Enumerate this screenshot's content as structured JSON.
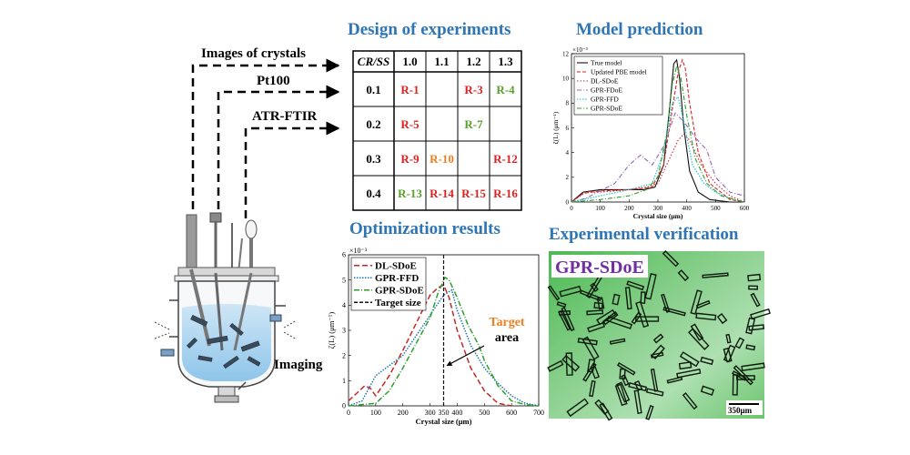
{
  "labels": {
    "images_of_crystals": "Images of crystals",
    "pt100": "Pt100",
    "atr_ftir": "ATR-FTIR",
    "imaging": "Imaging"
  },
  "headings": {
    "design": "Design of experiments",
    "model": "Model prediction",
    "optimization": "Optimization results",
    "verification": "Experimental verification"
  },
  "doe_table": {
    "corner": "CR/SS",
    "columns": [
      "1.0",
      "1.1",
      "1.2",
      "1.3"
    ],
    "rows": [
      {
        "header": "0.1",
        "cells": [
          {
            "text": "R-1",
            "color": "#e02020"
          },
          {
            "text": "",
            "color": "#000"
          },
          {
            "text": "R-3",
            "color": "#e02020"
          },
          {
            "text": "R-4",
            "color": "#5aa02c"
          }
        ]
      },
      {
        "header": "0.2",
        "cells": [
          {
            "text": "R-5",
            "color": "#e02020"
          },
          {
            "text": "",
            "color": "#000"
          },
          {
            "text": "R-7",
            "color": "#5aa02c"
          },
          {
            "text": "",
            "color": "#000"
          }
        ]
      },
      {
        "header": "0.3",
        "cells": [
          {
            "text": "R-9",
            "color": "#e02020"
          },
          {
            "text": "R-10",
            "color": "#f07f20"
          },
          {
            "text": "",
            "color": "#000"
          },
          {
            "text": "R-12",
            "color": "#e02020"
          }
        ]
      },
      {
        "header": "0.4",
        "cells": [
          {
            "text": "R-13",
            "color": "#5aa02c"
          },
          {
            "text": "R-14",
            "color": "#e02020"
          },
          {
            "text": "R-15",
            "color": "#e02020"
          },
          {
            "text": "R-16",
            "color": "#e02020"
          }
        ]
      }
    ]
  },
  "chart_data": [
    {
      "type": "line",
      "title": "Model prediction",
      "xlabel": "Crystal size (μm)",
      "ylabel": "ζ(L) (μm⁻¹)",
      "y_multiplier": "×10⁻³",
      "xlim": [
        0,
        600
      ],
      "ylim": [
        0,
        12
      ],
      "xticks": [
        0,
        100,
        200,
        300,
        400,
        500,
        600
      ],
      "yticks": [
        0,
        2,
        4,
        6,
        8,
        10,
        12
      ],
      "legend_position": "top-left",
      "series": [
        {
          "name": "True model",
          "color": "#111111",
          "dash": "",
          "x": [
            0,
            40,
            100,
            150,
            200,
            250,
            290,
            320,
            340,
            355,
            365,
            375,
            390,
            410,
            440,
            480,
            550,
            600
          ],
          "y": [
            0,
            0.8,
            1.0,
            1.0,
            1.0,
            1.0,
            1.2,
            3.0,
            7.5,
            11.2,
            11.5,
            10.0,
            6.0,
            2.5,
            0.8,
            0.2,
            0,
            0
          ]
        },
        {
          "name": "Updated PBE model",
          "color": "#d62728",
          "dash": "4,2",
          "x": [
            0,
            40,
            100,
            200,
            280,
            320,
            350,
            370,
            385,
            395,
            410,
            440,
            480,
            550,
            600
          ],
          "y": [
            0,
            0.7,
            0.9,
            1.0,
            1.2,
            3.0,
            7.5,
            10.5,
            11.5,
            10.8,
            8.0,
            4.0,
            1.5,
            0.2,
            0
          ]
        },
        {
          "name": "DL-SDoE",
          "color": "#d62728",
          "dash": "1.5,2",
          "x": [
            0,
            50,
            100,
            200,
            260,
            300,
            340,
            370,
            390,
            410,
            450,
            500,
            550,
            600
          ],
          "y": [
            0,
            0.8,
            0.8,
            1.0,
            1.2,
            1.5,
            3.5,
            5.0,
            5.5,
            5.0,
            3.0,
            1.5,
            0.5,
            0
          ]
        },
        {
          "name": "GPR-FDoE",
          "color": "#9467bd",
          "dash": "5,2,1,2",
          "x": [
            0,
            50,
            150,
            200,
            240,
            280,
            320,
            360,
            390,
            430,
            470,
            500,
            550,
            600
          ],
          "y": [
            0,
            0.3,
            1.5,
            3.0,
            3.8,
            3.0,
            4.5,
            7.2,
            6.5,
            5.2,
            4.2,
            2.0,
            0.8,
            0.5
          ]
        },
        {
          "name": "GPR-FFD",
          "color": "#17becf",
          "dash": "1.5,1.5",
          "x": [
            0,
            100,
            200,
            280,
            320,
            350,
            370,
            390,
            420,
            460,
            500,
            550,
            600
          ],
          "y": [
            0,
            0.5,
            1.0,
            1.5,
            4.0,
            8.0,
            8.5,
            6.5,
            3.0,
            1.5,
            0.8,
            0.3,
            0
          ]
        },
        {
          "name": "GPR-SDoE",
          "color": "#2ca02c",
          "dash": "5,2,1,2",
          "x": [
            0,
            100,
            200,
            260,
            300,
            330,
            350,
            365,
            380,
            400,
            430,
            470,
            520,
            600
          ],
          "y": [
            0,
            0.2,
            0.5,
            1.0,
            2.0,
            5.5,
            9.5,
            11.0,
            10.0,
            7.0,
            3.5,
            1.5,
            0.5,
            0
          ]
        }
      ]
    },
    {
      "type": "line",
      "title": "Optimization results",
      "xlabel": "Crystal size (μm)",
      "ylabel": "ζ(L) (μm⁻¹)",
      "y_multiplier": "×10⁻³",
      "xlim": [
        0,
        700
      ],
      "ylim": [
        0,
        6
      ],
      "xticks": [
        0,
        100,
        200,
        300,
        350,
        400,
        500,
        600,
        700
      ],
      "yticks": [
        0,
        1,
        2,
        3,
        4,
        5,
        6
      ],
      "legend_position": "top-left",
      "target_size": 350,
      "target_area": [
        320,
        380
      ],
      "annotation": "Target area",
      "series": [
        {
          "name": "DL-SDoE",
          "color": "#c62828",
          "dash": "6,3",
          "x": [
            0,
            40,
            60,
            80,
            100,
            150,
            200,
            250,
            300,
            330,
            350,
            370,
            400,
            450,
            500,
            550,
            600
          ],
          "y": [
            0.2,
            0.6,
            0.8,
            0.7,
            0.4,
            1.2,
            2.2,
            3.3,
            4.4,
            4.7,
            4.8,
            4.3,
            3.0,
            1.5,
            0.6,
            0.1,
            0
          ]
        },
        {
          "name": "GPR-FFD",
          "color": "#1f77b4",
          "dash": "1.5,1.5",
          "x": [
            0,
            50,
            100,
            150,
            200,
            250,
            300,
            350,
            380,
            400,
            450,
            500,
            550,
            600,
            650,
            700
          ],
          "y": [
            0,
            0.2,
            1.2,
            1.6,
            2.0,
            2.8,
            3.6,
            4.4,
            4.6,
            3.8,
            2.4,
            1.5,
            0.9,
            0.4,
            0.1,
            0
          ]
        },
        {
          "name": "GPR-SDoE",
          "color": "#2ca02c",
          "dash": "6,2,1,2",
          "x": [
            0,
            100,
            150,
            200,
            250,
            300,
            330,
            355,
            370,
            400,
            440,
            480,
            500,
            550,
            600,
            650,
            700
          ],
          "y": [
            0,
            0.1,
            0.6,
            1.5,
            2.5,
            3.5,
            4.5,
            5.1,
            5.0,
            4.3,
            3.2,
            2.4,
            1.8,
            0.8,
            0.2,
            0.05,
            0
          ]
        },
        {
          "name": "Target size",
          "color": "#111111",
          "dash": "4,2",
          "vertical": 350
        }
      ]
    }
  ],
  "verification": {
    "label": "GPR-SDoE",
    "label_color": "#7030a0",
    "scale_bar": "350μm"
  }
}
